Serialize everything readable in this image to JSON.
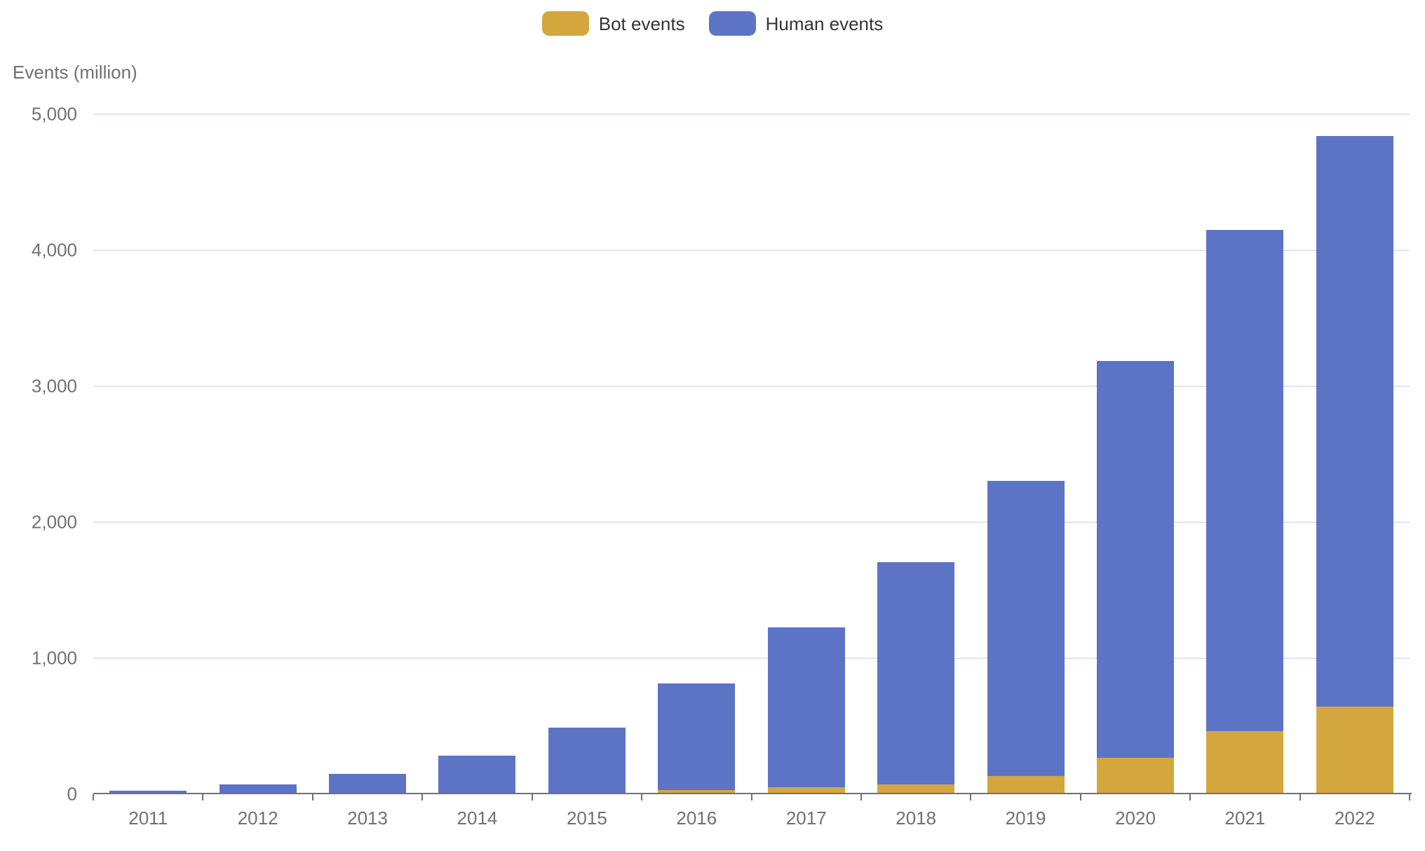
{
  "legend": {
    "items": [
      {
        "label": "Bot events",
        "color": "#D4A63E"
      },
      {
        "label": "Human events",
        "color": "#5C73C6"
      }
    ]
  },
  "y_axis": {
    "title": "Events (million)"
  },
  "chart_data": {
    "type": "bar",
    "stacked": true,
    "title": "",
    "xlabel": "",
    "ylabel": "Events (million)",
    "categories": [
      "2011",
      "2012",
      "2013",
      "2014",
      "2015",
      "2016",
      "2017",
      "2018",
      "2019",
      "2020",
      "2021",
      "2022"
    ],
    "series": [
      {
        "name": "Bot events",
        "color": "#D4A63E",
        "values": [
          0,
          0,
          0,
          0,
          12,
          30,
          52,
          73,
          133,
          268,
          465,
          642
        ]
      },
      {
        "name": "Human events",
        "color": "#5C73C6",
        "values": [
          25,
          70,
          150,
          285,
          478,
          785,
          1173,
          1632,
          2170,
          2917,
          3685,
          4200
        ]
      }
    ],
    "totals": [
      25,
      70,
      150,
      285,
      490,
      815,
      1225,
      1705,
      2303,
      3185,
      4150,
      4842
    ],
    "ylim": [
      0,
      5000
    ],
    "yticks": [
      0,
      1000,
      2000,
      3000,
      4000,
      5000
    ],
    "ytick_labels": [
      "0",
      "1,000",
      "2,000",
      "3,000",
      "4,000",
      "5,000"
    ],
    "grid": true,
    "legend_position": "top-center"
  },
  "colors": {
    "background": "#ffffff",
    "grid_line": "#E0E6F1",
    "axis_line": "#6E7079",
    "axis_text": "#6E7079",
    "legend_text": "#333333"
  }
}
